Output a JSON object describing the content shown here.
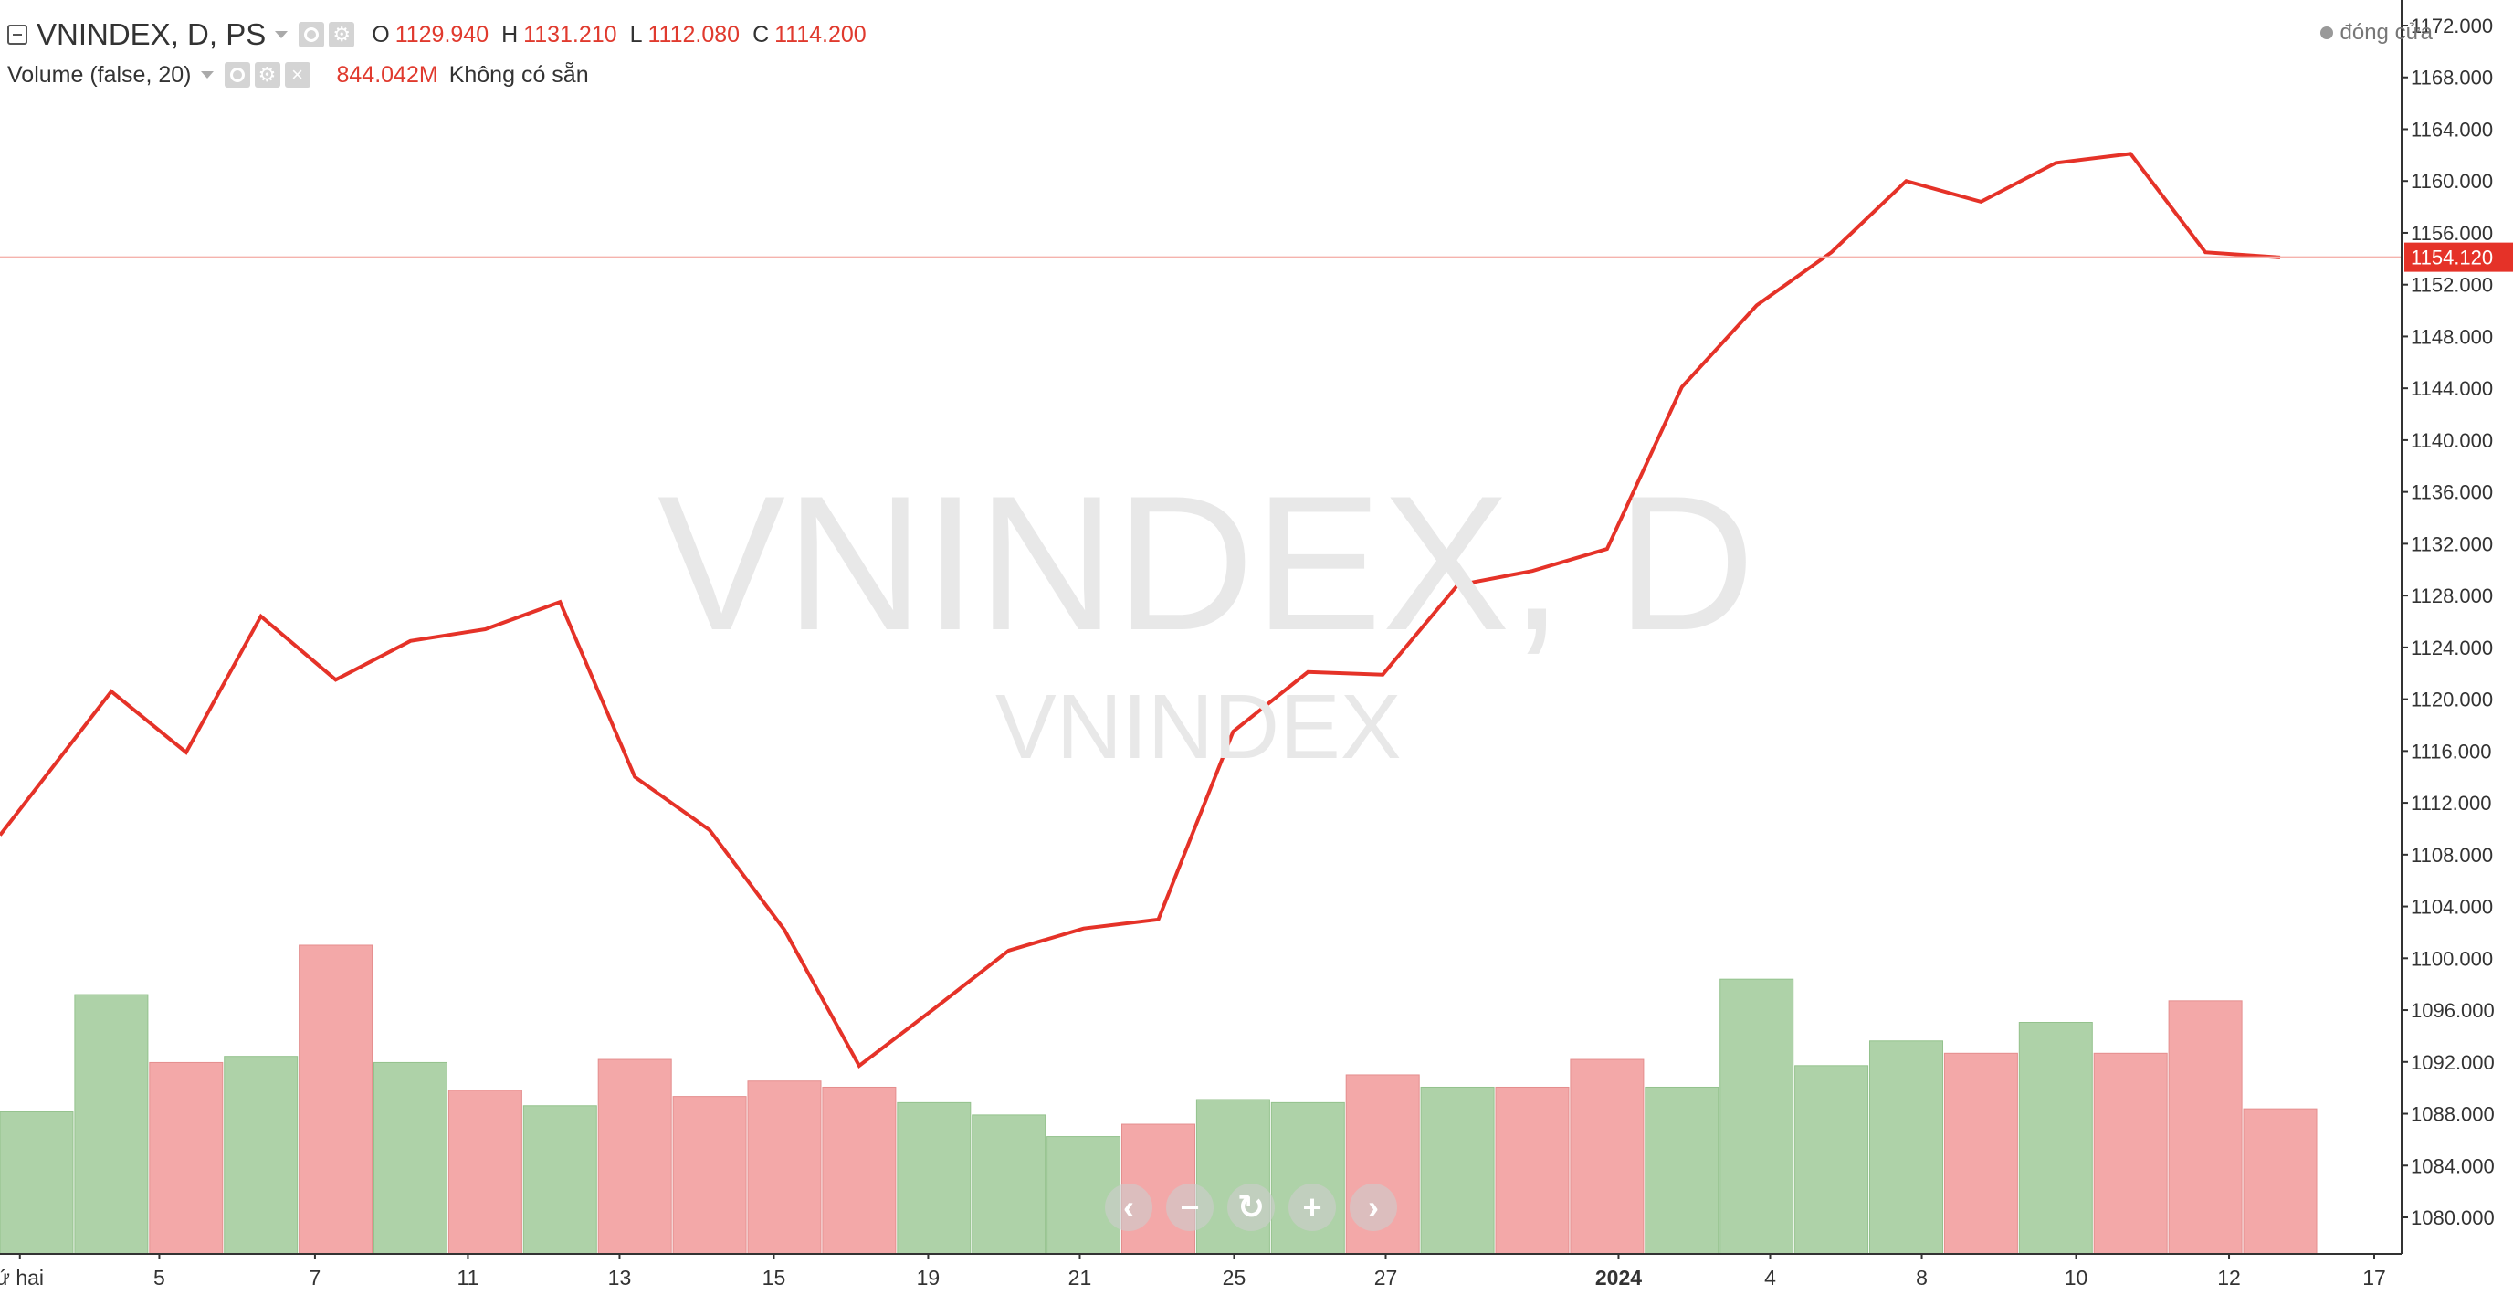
{
  "legend": {
    "title": "VNINDEX, D, PS",
    "ohlc": [
      {
        "label": "O",
        "value": "1129.940"
      },
      {
        "label": "H",
        "value": "1131.210"
      },
      {
        "label": "L",
        "value": "1112.080"
      },
      {
        "label": "C",
        "value": "1114.200"
      }
    ],
    "volume_title": "Volume (false, 20)",
    "volume_value": "844.042M",
    "volume_na": "Không có sẵn",
    "status": "đóng cửa"
  },
  "watermark": {
    "main": "VNINDEX, D",
    "sub": "VNINDEX"
  },
  "icons": {
    "collapse": "collapse-icon",
    "eye": "eye-icon",
    "settings": "gear-icon",
    "close": "close-icon",
    "nav": [
      "chevron-left-icon",
      "zoom-out-icon",
      "reset-icon",
      "zoom-in-icon",
      "chevron-right-icon"
    ]
  },
  "nav_glyphs": [
    "‹",
    "−",
    "↻",
    "+",
    "›"
  ],
  "colors": {
    "line": "#e53228",
    "up_bar": "#aed2a8",
    "up_bar_edge": "#94c28d",
    "down_bar": "#f3a8a8",
    "down_bar_edge": "#e48e8e",
    "price_badge": "#e53228",
    "axis": "#333333"
  },
  "chart_data": [
    {
      "type": "line",
      "series": [
        {
          "values": [
            1109.5,
            1120.6,
            1115.9,
            1126.4,
            1121.5,
            1124.5,
            1125.4,
            1127.5,
            1114.0,
            1109.9,
            1102.2,
            1091.7,
            1096.1,
            1100.6,
            1102.3,
            1103.0,
            1117.5,
            1122.1,
            1121.9,
            1128.8,
            1129.9,
            1131.6,
            1144.1,
            1150.4,
            1154.5,
            1160.0,
            1158.4,
            1161.4,
            1162.1,
            1154.5,
            1154.1
          ]
        }
      ],
      "y_ticks": [
        "1080.000",
        "1084.000",
        "1088.000",
        "1092.000",
        "1096.000",
        "1100.000",
        "1104.000",
        "1108.000",
        "1112.000",
        "1116.000",
        "1120.000",
        "1124.000",
        "1128.000",
        "1132.000",
        "1136.000",
        "1140.000",
        "1144.000",
        "1148.000",
        "1152.000",
        "1156.000",
        "1160.000",
        "1164.000",
        "1168.000",
        "1172.000"
      ],
      "ylim": [
        1077,
        1174
      ],
      "last_price": 1154.12,
      "last_price_label": "1154.120",
      "x_ticks": [
        {
          "label": "ứ hai",
          "bold": false
        },
        {
          "label": "5",
          "bold": false
        },
        {
          "label": "7",
          "bold": false
        },
        {
          "label": "11",
          "bold": false
        },
        {
          "label": "13",
          "bold": false
        },
        {
          "label": "15",
          "bold": false
        },
        {
          "label": "19",
          "bold": false
        },
        {
          "label": "21",
          "bold": false
        },
        {
          "label": "25",
          "bold": false
        },
        {
          "label": "27",
          "bold": false
        },
        {
          "label": "2024",
          "bold": true
        },
        {
          "label": "4",
          "bold": false
        },
        {
          "label": "8",
          "bold": false
        },
        {
          "label": "10",
          "bold": false
        },
        {
          "label": "12",
          "bold": false
        },
        {
          "label": "17",
          "bold": false
        }
      ],
      "grid": false
    },
    {
      "type": "bar",
      "values": [
        0.46,
        0.84,
        0.62,
        0.64,
        1.0,
        0.62,
        0.53,
        0.48,
        0.63,
        0.51,
        0.56,
        0.54,
        0.49,
        0.45,
        0.38,
        0.42,
        0.5,
        0.49,
        0.58,
        0.54,
        0.54,
        0.63,
        0.54,
        0.89,
        0.61,
        0.69,
        0.65,
        0.75,
        0.65,
        0.82,
        0.47
      ],
      "directions": [
        "up",
        "up",
        "down",
        "up",
        "down",
        "up",
        "down",
        "up",
        "down",
        "down",
        "down",
        "down",
        "up",
        "up",
        "up",
        "down",
        "up",
        "up",
        "down",
        "up",
        "down",
        "down",
        "up",
        "up",
        "up",
        "up",
        "down",
        "up",
        "down",
        "down",
        "down"
      ],
      "note": "relative volume (tallest = 1)"
    }
  ]
}
